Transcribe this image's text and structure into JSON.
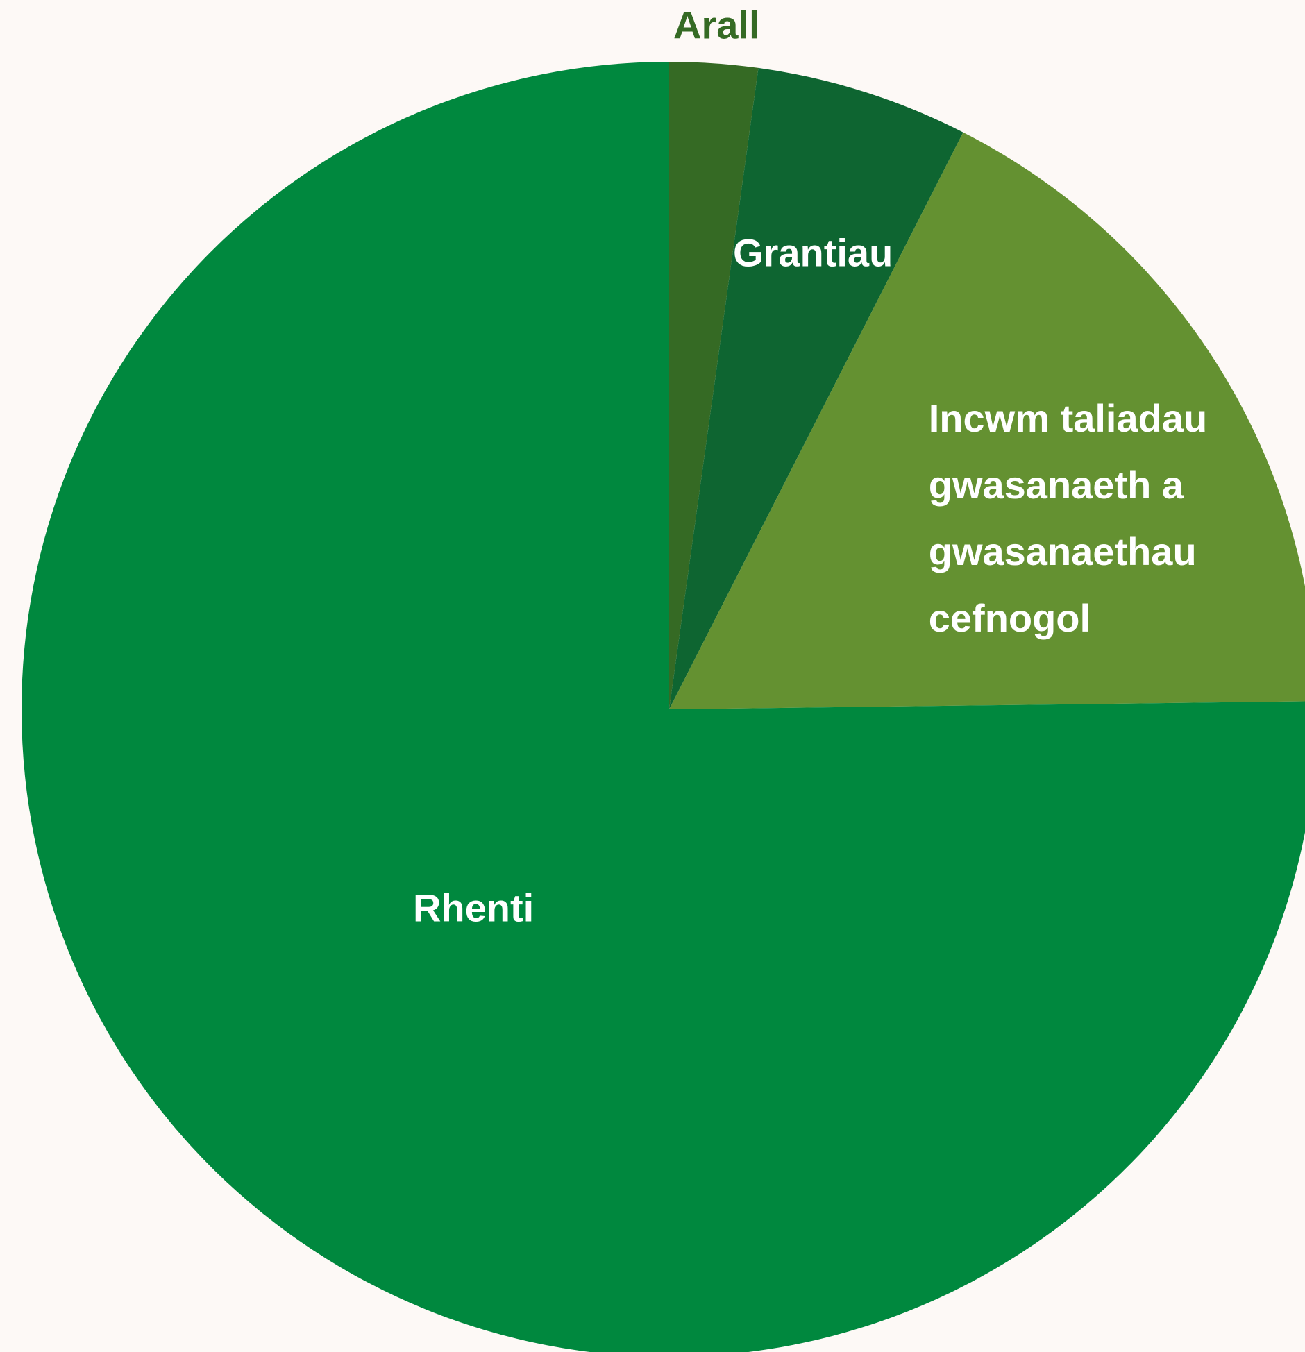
{
  "chart_data": {
    "type": "pie",
    "title": "",
    "start_angle_deg": 0,
    "direction": "clockwise",
    "slices": [
      {
        "label": "Arall",
        "label_lines": [
          "Arall"
        ],
        "value": 2.2,
        "color": "#356a24",
        "label_color": "#356a24",
        "label_outside": true
      },
      {
        "label": "Grantiau",
        "label_lines": [
          "Grantiau"
        ],
        "value": 5.3,
        "color": "#0e6531",
        "label_color": "#ffffff",
        "label_outside": false
      },
      {
        "label": "Incwm taliadau gwasanaeth a gwasanaethau cefnogol",
        "label_lines": [
          "Incwm taliadau",
          "gwasanaeth a",
          "gwasanaethau",
          "cefnogol"
        ],
        "value": 17.3,
        "color": "#649131",
        "label_color": "#ffffff",
        "label_outside": false
      },
      {
        "label": "Rhenti",
        "label_lines": [
          "Rhenti"
        ],
        "value": 75.2,
        "color": "#00883e",
        "label_color": "#ffffff",
        "label_outside": false
      }
    ]
  }
}
